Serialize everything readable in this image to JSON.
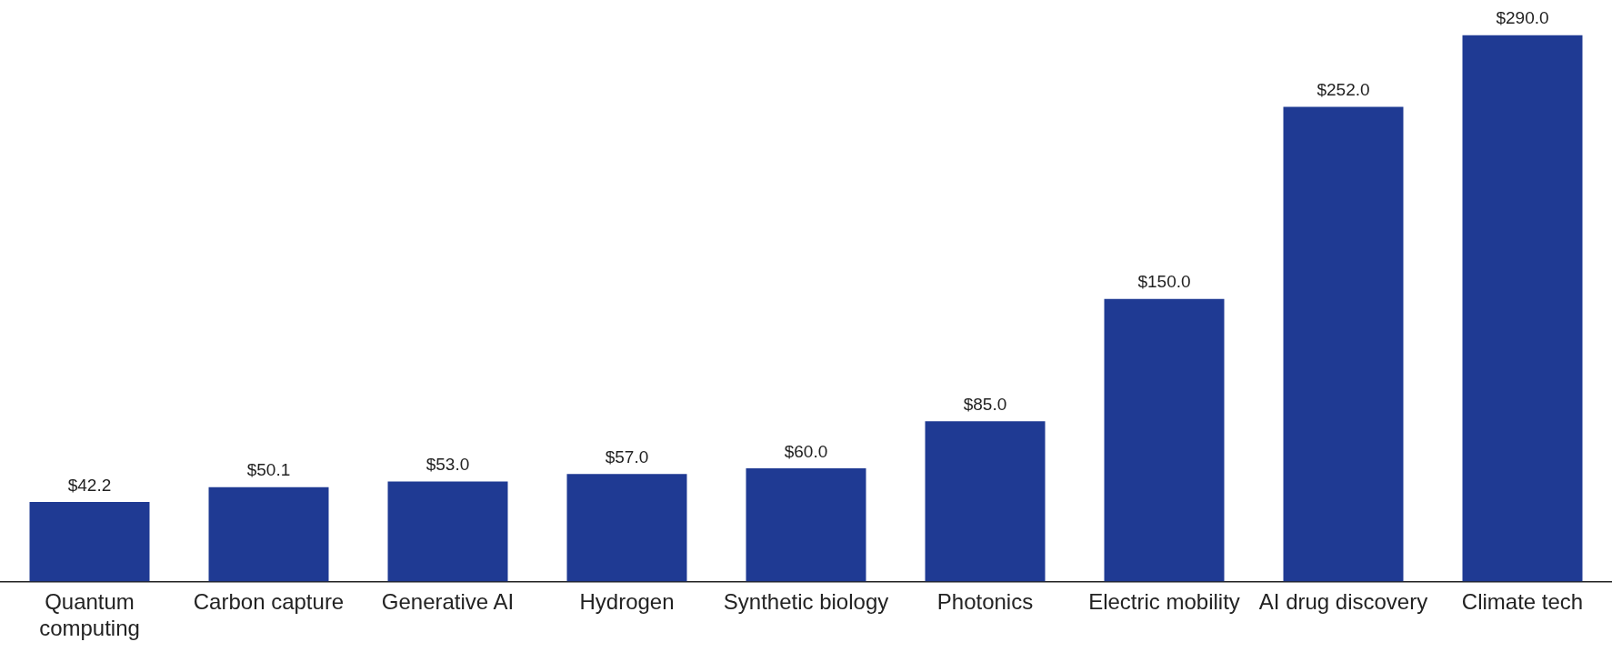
{
  "chart_data": {
    "type": "bar",
    "categories": [
      "Quantum computing",
      "Carbon capture",
      "Generative AI",
      "Hydrogen",
      "Synthetic biology",
      "Photonics",
      "Electric mobility",
      "AI drug discovery",
      "Climate tech"
    ],
    "values": [
      42.2,
      50.1,
      53.0,
      57.0,
      60.0,
      85.0,
      150.0,
      252.0,
      290.0
    ],
    "value_labels": [
      "$42.2",
      "$50.1",
      "$53.0",
      "$57.0",
      "$60.0",
      "$85.0",
      "$150.0",
      "$252.0",
      "$290.0"
    ],
    "color": "#1f3a93",
    "grid": false,
    "legend": false,
    "tick_labels": "x"
  }
}
